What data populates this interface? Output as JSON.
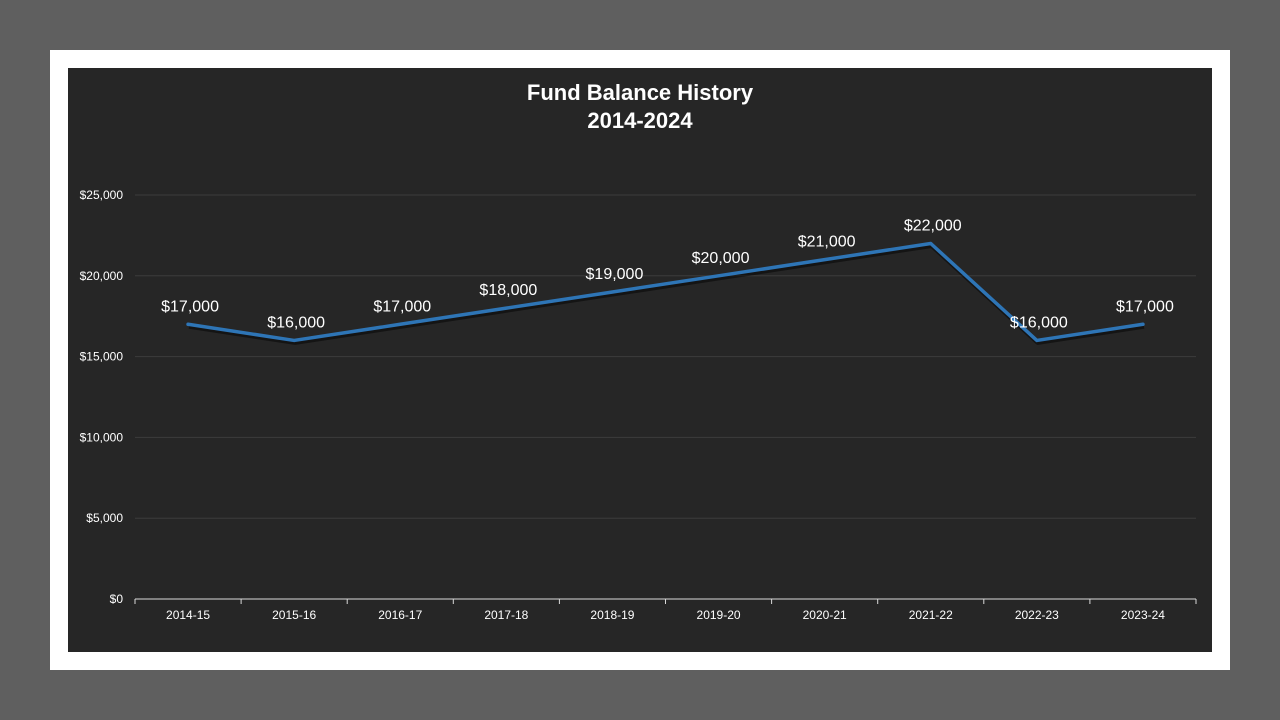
{
  "chart_data": {
    "type": "line",
    "title": "Fund Balance History",
    "subtitle": "2014-2024",
    "categories": [
      "2014-15",
      "2015-16",
      "2016-17",
      "2017-18",
      "2018-19",
      "2019-20",
      "2020-21",
      "2021-22",
      "2022-23",
      "2023-24"
    ],
    "series": [
      {
        "values": [
          17000,
          16000,
          17000,
          18000,
          19000,
          20000,
          21000,
          22000,
          16000,
          17000
        ],
        "color": "#2e75b6"
      }
    ],
    "data_labels": [
      "$17,000",
      "$16,000",
      "$17,000",
      "$18,000",
      "$19,000",
      "$20,000",
      "$21,000",
      "$22,000",
      "$16,000",
      "$17,000"
    ],
    "ylim": [
      0,
      25000
    ],
    "yticks": [
      0,
      5000,
      10000,
      15000,
      20000,
      25000
    ],
    "ytick_labels": [
      "$0",
      "$5,000",
      "$10,000",
      "$15,000",
      "$20,000",
      "$25,000"
    ],
    "grid": true,
    "legend": "none",
    "colors": {
      "background": "#262626",
      "gridline": "#3c3c3c",
      "axis": "#d9d9d9",
      "text": "#ffffff"
    }
  }
}
